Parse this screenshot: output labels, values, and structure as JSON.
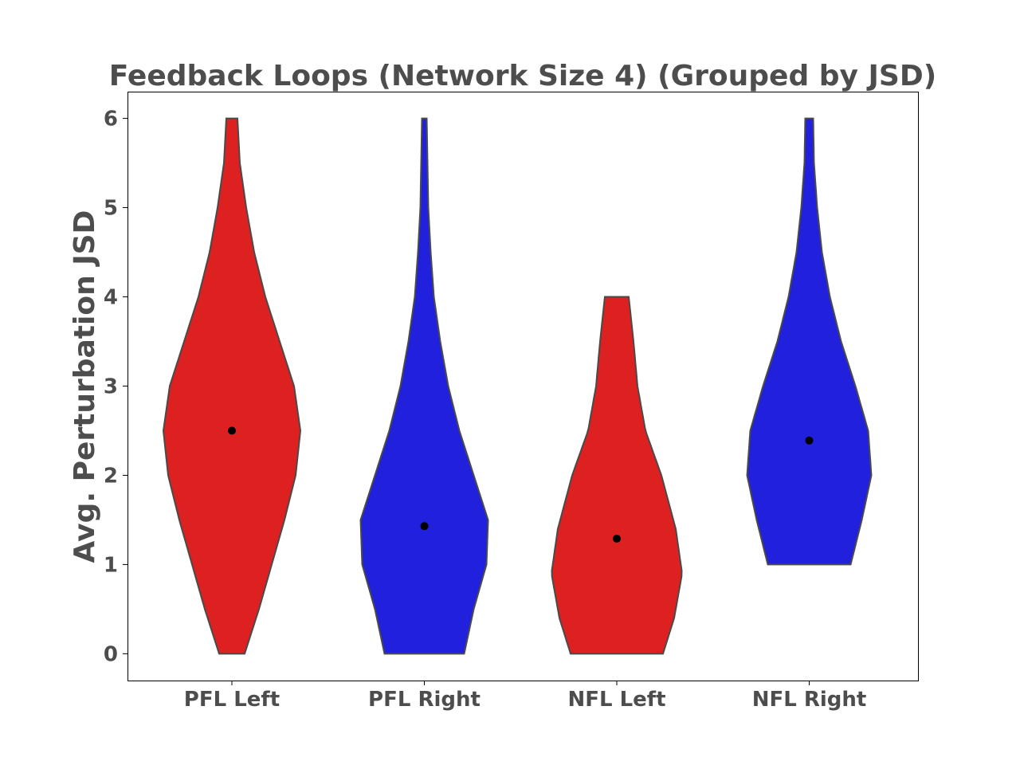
{
  "chart_data": {
    "type": "violin",
    "title": "Feedback Loops (Network  Size 4) (Grouped by JSD)",
    "xlabel": "",
    "ylabel": "Avg. Perturbation JSD",
    "ylim": [
      -0.3,
      6.3
    ],
    "yticks": [
      0,
      1,
      2,
      3,
      4,
      5,
      6
    ],
    "categories": [
      "PFL Left",
      "PFL Right",
      "NFL Left",
      "NFL Right"
    ],
    "colors": [
      "#dd2020",
      "#2020dd",
      "#dd2020",
      "#2020dd"
    ],
    "grid": false,
    "violins": [
      {
        "category": "PFL Left",
        "color": "#dd2020",
        "min": 0,
        "max": 6,
        "mean": 2.5,
        "profile": [
          [
            0,
            0.16
          ],
          [
            0.5,
            0.34
          ],
          [
            1,
            0.5
          ],
          [
            1.5,
            0.66
          ],
          [
            2,
            0.8
          ],
          [
            2.5,
            0.86
          ],
          [
            3,
            0.78
          ],
          [
            3.5,
            0.6
          ],
          [
            4,
            0.42
          ],
          [
            4.5,
            0.28
          ],
          [
            5,
            0.18
          ],
          [
            5.5,
            0.1
          ],
          [
            6,
            0.07
          ]
        ]
      },
      {
        "category": "PFL Right",
        "color": "#2020dd",
        "min": 0,
        "max": 6,
        "mean": 1.43,
        "profile": [
          [
            0,
            0.5
          ],
          [
            0.5,
            0.62
          ],
          [
            1,
            0.78
          ],
          [
            1.5,
            0.8
          ],
          [
            2,
            0.62
          ],
          [
            2.5,
            0.44
          ],
          [
            3,
            0.3
          ],
          [
            3.5,
            0.2
          ],
          [
            4,
            0.12
          ],
          [
            4.5,
            0.08
          ],
          [
            5,
            0.05
          ],
          [
            5.5,
            0.04
          ],
          [
            6,
            0.03
          ]
        ]
      },
      {
        "category": "NFL Left",
        "color": "#dd2020",
        "min": 0,
        "max": 4,
        "mean": 1.29,
        "profile": [
          [
            0,
            0.58
          ],
          [
            0.4,
            0.72
          ],
          [
            0.9,
            0.82
          ],
          [
            1.4,
            0.74
          ],
          [
            2,
            0.56
          ],
          [
            2.5,
            0.36
          ],
          [
            3,
            0.26
          ],
          [
            3.5,
            0.21
          ],
          [
            4,
            0.15
          ]
        ]
      },
      {
        "category": "NFL Right",
        "color": "#2020dd",
        "min": 1,
        "max": 6,
        "mean": 2.39,
        "profile": [
          [
            1,
            0.52
          ],
          [
            1.5,
            0.66
          ],
          [
            2,
            0.78
          ],
          [
            2.5,
            0.74
          ],
          [
            3,
            0.58
          ],
          [
            3.5,
            0.4
          ],
          [
            4,
            0.26
          ],
          [
            4.5,
            0.16
          ],
          [
            5,
            0.1
          ],
          [
            5.5,
            0.06
          ],
          [
            6,
            0.05
          ]
        ]
      }
    ]
  }
}
